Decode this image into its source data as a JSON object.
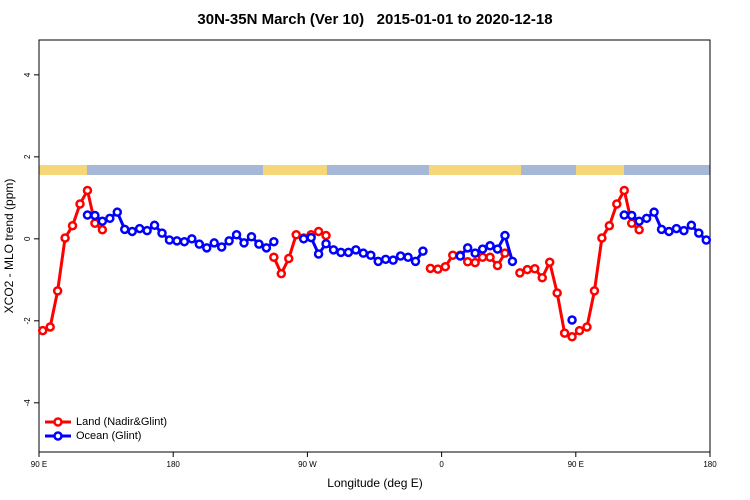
{
  "chart_data": {
    "type": "line",
    "title": "30N-35N March (Ver 10)   2015-01-01 to 2020-12-18",
    "x_label": "Longitude (deg E)",
    "y_label": "XCO2 - MLO trend (ppm)",
    "xlim": [
      90,
      540
    ],
    "xticks": [
      {
        "value": 90,
        "label": "90 E"
      },
      180,
      {
        "value": 270,
        "label": "90 W"
      },
      {
        "value": 360,
        "label": "0"
      },
      {
        "value": 450,
        "label": "90 E"
      },
      {
        "value": 540,
        "label": "180"
      }
    ],
    "ylim": [
      -5.2,
      4.85
    ],
    "yticks": [
      -4,
      -2,
      0,
      2,
      4
    ],
    "legend": "bottomleft",
    "series": [
      {
        "name": "Land (Nadir&Glint)",
        "color": "#ff0000",
        "x": [
          92.5,
          97.5,
          102.5,
          107.5,
          112.5,
          117.5,
          122.5,
          127.5,
          132.5,
          137.5,
          247.5,
          252.5,
          257.5,
          262.5,
          267.5,
          272.5,
          277.5,
          282.5,
          287.5,
          352.5,
          357.5,
          362.5,
          367.5,
          372.5,
          377.5,
          382.5,
          387.5,
          392.5,
          397.5,
          402.5,
          407.5,
          412.5,
          417.5,
          422.5,
          427.5,
          432.5,
          437.5,
          442.5,
          447.5,
          452.5,
          457.5,
          462.5,
          467.5,
          472.5,
          477.5,
          482.5,
          487.5,
          492.5
        ],
        "values": [
          -2.24,
          -2.15,
          -1.27,
          0.02,
          0.32,
          0.85,
          1.18,
          0.38,
          0.22,
          null,
          -0.45,
          -0.85,
          -0.48,
          0.1,
          0.02,
          0.1,
          0.18,
          0.08,
          null,
          -0.72,
          -0.74,
          -0.68,
          -0.4,
          -0.4,
          -0.56,
          -0.58,
          -0.45,
          -0.45,
          -0.65,
          -0.35,
          null,
          -0.83,
          -0.75,
          -0.73,
          -0.95,
          -0.57,
          -1.32,
          -2.3,
          -2.39,
          -2.24,
          -2.15,
          -1.27,
          0.02,
          0.32,
          0.85,
          1.18,
          0.38,
          0.22
        ]
      },
      {
        "name": "Ocean (Glint)",
        "color": "#0000ff",
        "x": [
          122.5,
          127.5,
          132.5,
          137.5,
          142.5,
          147.5,
          152.5,
          157.5,
          162.5,
          167.5,
          172.5,
          177.5,
          182.5,
          187.5,
          192.5,
          197.5,
          202.5,
          207.5,
          212.5,
          217.5,
          222.5,
          227.5,
          232.5,
          237.5,
          242.5,
          247.5,
          252.5,
          267.5,
          272.5,
          277.5,
          282.5,
          287.5,
          292.5,
          297.5,
          302.5,
          307.5,
          312.5,
          317.5,
          322.5,
          327.5,
          332.5,
          337.5,
          342.5,
          347.5,
          352.5,
          372.5,
          377.5,
          382.5,
          387.5,
          392.5,
          397.5,
          402.5,
          407.5,
          412.5,
          447.5,
          452.5,
          482.5,
          487.5,
          492.5,
          497.5,
          502.5,
          507.5,
          512.5,
          517.5,
          522.5,
          527.5,
          532.5,
          537.5
        ],
        "values": [
          0.58,
          0.57,
          0.43,
          0.5,
          0.65,
          0.23,
          0.18,
          0.25,
          0.2,
          0.33,
          0.14,
          -0.03,
          -0.05,
          -0.07,
          0.0,
          -0.13,
          -0.22,
          -0.1,
          -0.2,
          -0.05,
          0.1,
          -0.1,
          0.05,
          -0.13,
          -0.22,
          -0.07,
          null,
          0.0,
          0.03,
          -0.37,
          -0.12,
          -0.27,
          -0.33,
          -0.33,
          -0.27,
          -0.35,
          -0.4,
          -0.55,
          -0.5,
          -0.52,
          -0.42,
          -0.45,
          -0.55,
          -0.3,
          null,
          -0.42,
          -0.22,
          -0.35,
          -0.25,
          -0.17,
          -0.25,
          0.08,
          -0.55,
          null,
          -1.98,
          null,
          0.58,
          0.57,
          0.43,
          0.5,
          0.65,
          0.23,
          0.18,
          0.25,
          0.2,
          0.33,
          0.14,
          -0.03
        ]
      }
    ]
  }
}
